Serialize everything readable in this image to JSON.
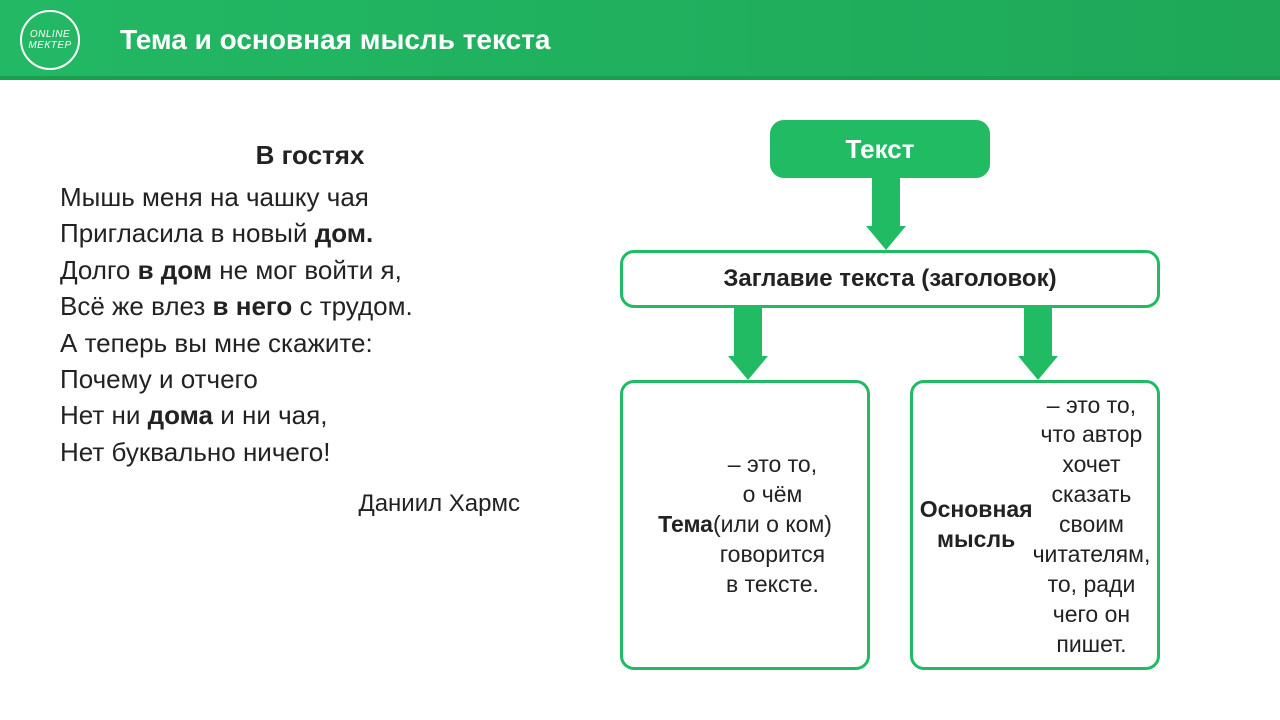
{
  "colors": {
    "primary": "#20bb63",
    "header_start": "#22b864",
    "header_end": "#1ea858",
    "header_divider": "#17a14f",
    "white": "#ffffff",
    "text": "#222222"
  },
  "header": {
    "logo_line1": "ONLINE",
    "logo_line2": "МЕКТЕР",
    "title": "Тема и основная мысль текста"
  },
  "poem": {
    "title": "В гостях",
    "lines_html": "Мышь меня на чашку чая<br>Пригласила в новый <b>дом.</b><br>Долго <b>в дом</b> не мог войти я,<br>Всё же влез <b>в него</b> с трудом.<br>А теперь вы мне скажите:<br>Почему и отчего<br>Нет ни <b>дома</b> и ни чая,<br>Нет буквально ничего!",
    "author": "Даниил Хармс"
  },
  "diagram": {
    "type": "tree",
    "root": {
      "label": "Текст",
      "bg": "#20bb63",
      "fg": "#ffffff",
      "border": "#20bb63"
    },
    "mid": {
      "label": "Заглавие текста (заголовок)",
      "bg": "#ffffff",
      "fg": "#222222",
      "border": "#20bb63"
    },
    "leaves": [
      {
        "label_html": "<b>Тема</b> – это то,<br>о чём<br>(или о ком)<br>говорится<br>в тексте.",
        "bg": "#ffffff",
        "fg": "#222222",
        "border": "#20bb63"
      },
      {
        "label_html": "<b>Основная мысль</b> – это то, что автор хочет сказать своим читателям,<br>то, ради чего он пишет.",
        "bg": "#ffffff",
        "fg": "#222222",
        "border": "#20bb63"
      }
    ],
    "arrow": {
      "color": "#20bb63",
      "stem_width": 28,
      "head_width": 40,
      "head_height": 24
    },
    "box_border_radius": 14,
    "box_border_width": 3,
    "font_sizes": {
      "root": 26,
      "mid": 24,
      "leaf": 23
    }
  }
}
